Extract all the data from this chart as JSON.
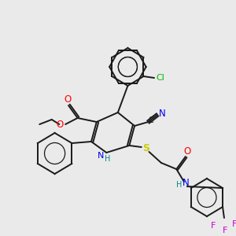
{
  "background_color": "#eaeaea",
  "bond_color": "#1a1a1a",
  "atom_colors": {
    "O": "#ff0000",
    "N": "#0000ee",
    "S": "#cccc00",
    "Cl": "#00bb00",
    "CN": "#0000ee",
    "F": "#cc00cc",
    "H": "#008888"
  },
  "figsize": [
    3.0,
    3.0
  ],
  "dpi": 100
}
